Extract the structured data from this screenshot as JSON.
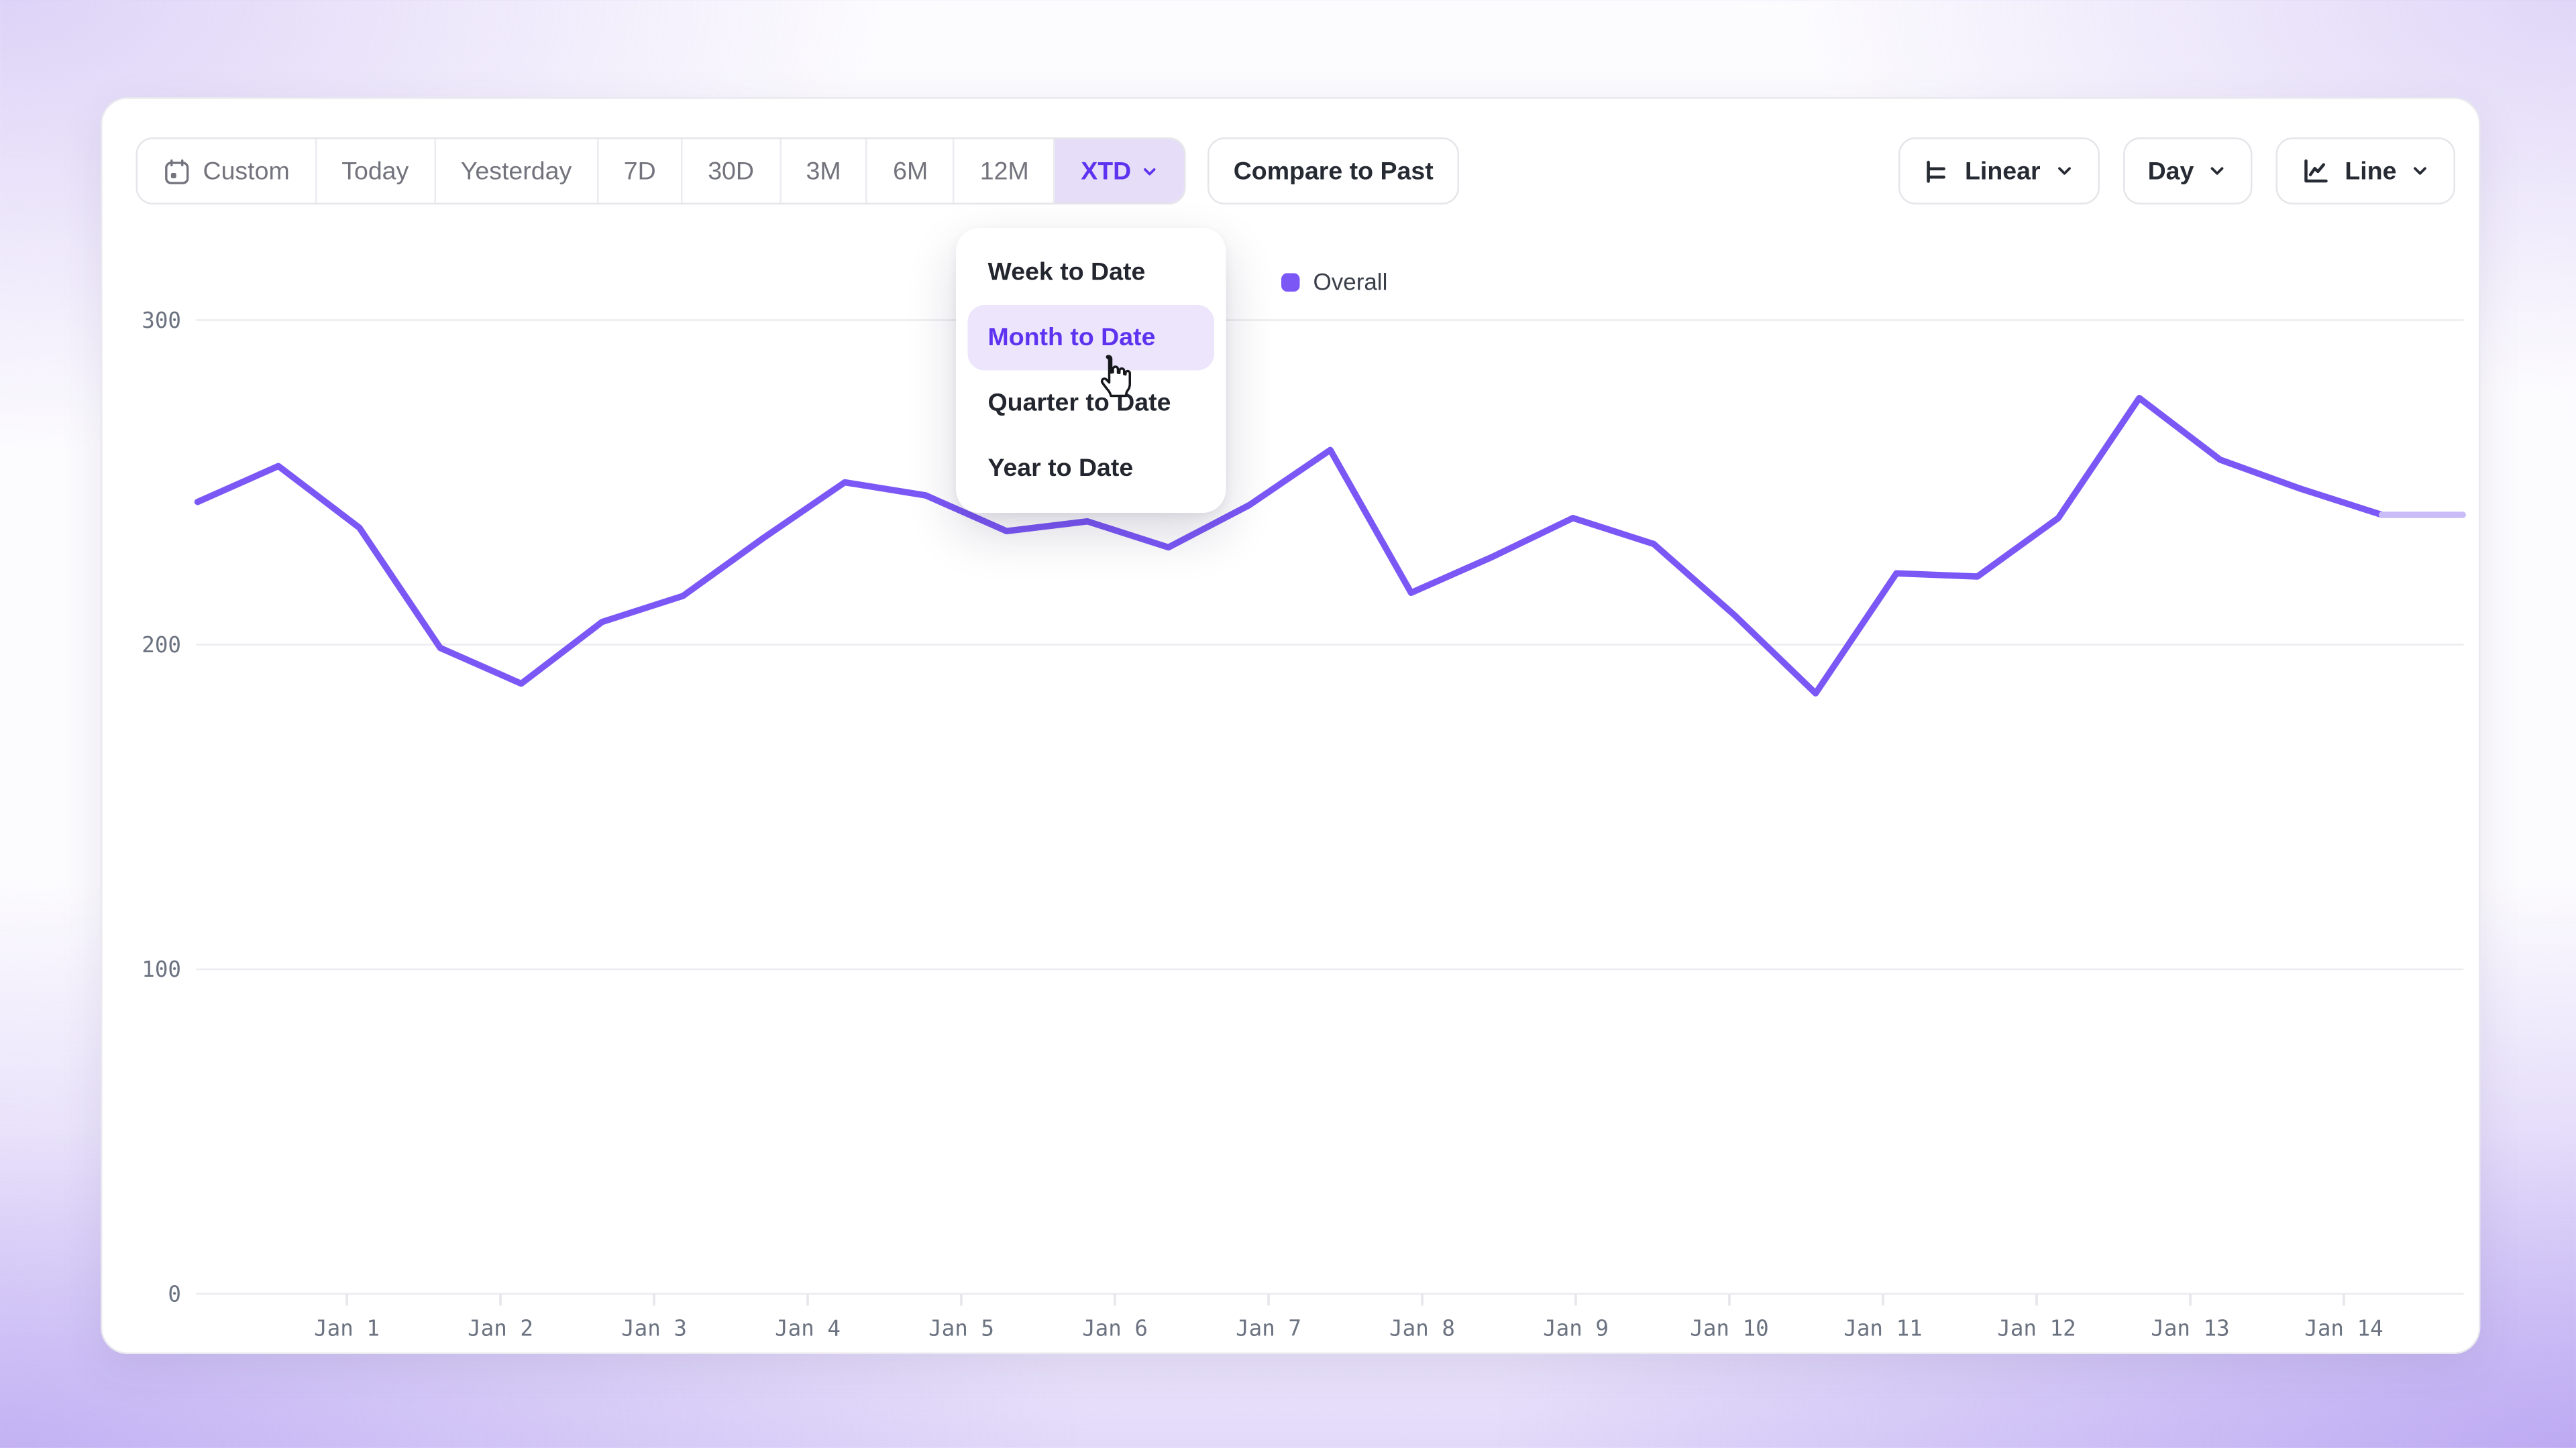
{
  "toolbar": {
    "ranges": [
      "Custom",
      "Today",
      "Yesterday",
      "7D",
      "30D",
      "3M",
      "6M",
      "12M",
      "XTD"
    ],
    "selected_range": "XTD",
    "compare_label": "Compare to Past",
    "scale_button": "Linear",
    "granularity_button": "Day",
    "chart_type_button": "Line"
  },
  "dropdown": {
    "items": [
      "Week to Date",
      "Month to Date",
      "Quarter to Date",
      "Year to Date"
    ],
    "highlighted": "Month to Date"
  },
  "legend": {
    "label": "Overall"
  },
  "chart_data": {
    "type": "line",
    "title": "",
    "xlabel": "",
    "ylabel": "",
    "x_tick_labels": [
      "Jan 1",
      "Jan 2",
      "Jan 3",
      "Jan 4",
      "Jan 5",
      "Jan 6",
      "Jan 7",
      "Jan 8",
      "Jan 9",
      "Jan 10",
      "Jan 11",
      "Jan 12",
      "Jan 13",
      "Jan 14"
    ],
    "y_ticks": [
      0,
      100,
      200,
      300
    ],
    "ylim": [
      0,
      300
    ],
    "grid": true,
    "legend_position": "top-center",
    "series": [
      {
        "name": "Overall",
        "x_day": [
          0,
          0.5,
          1,
          1.5,
          2,
          2.5,
          3,
          3.5,
          4,
          4.5,
          5,
          5.5,
          6,
          6.5,
          7,
          7.5,
          8,
          8.5,
          9,
          9.5,
          10,
          10.5,
          11,
          11.5,
          12,
          12.5,
          13,
          13.5,
          14
        ],
        "values": [
          244,
          255,
          236,
          199,
          188,
          207,
          215,
          233,
          250,
          246,
          235,
          238,
          230,
          243,
          260,
          216,
          227,
          239,
          231,
          209,
          185,
          222,
          221,
          239,
          276,
          257,
          248,
          240,
          240
        ],
        "last_segment_faded": true
      }
    ]
  },
  "colors": {
    "accent": "#5e33f0",
    "line": "#7b58f6",
    "line_faded": "#c9bcf7",
    "legend_swatch": "#7b58f6",
    "selected_chip_bg": "#e6def9",
    "menu_highlight_bg": "#ece5fc",
    "grid": "#ececf0",
    "axis_text": "#6b7280"
  }
}
